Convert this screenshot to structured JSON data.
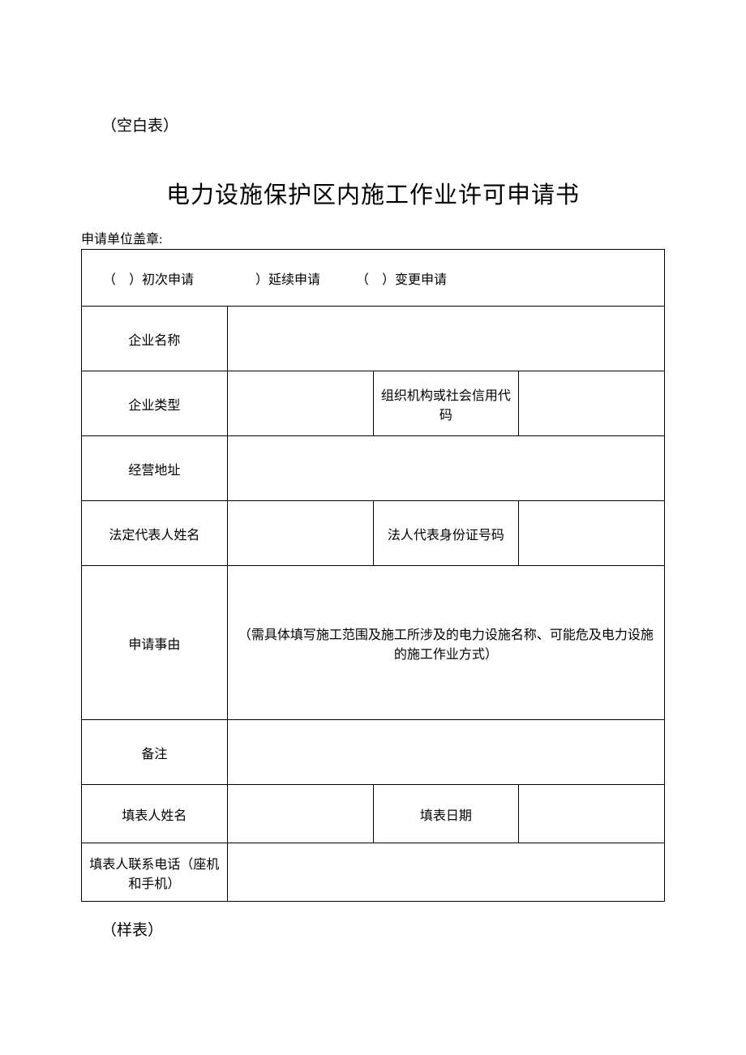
{
  "header": {
    "blank_form_label": "（空白表）",
    "title": "电力设施保护区内施工作业许可申请书",
    "seal_label": "申请单位盖章:",
    "sample_label": "（样表）"
  },
  "checkboxes": {
    "first": "（　）初次申请",
    "renewal": "　　）延续申请",
    "change": "（　）变更申请"
  },
  "labels": {
    "company_name": "企业名称",
    "company_type": "企业类型",
    "org_code": "组织机构或社会信用代码",
    "address": "经营地址",
    "legal_rep_name": "法定代表人姓名",
    "legal_rep_id": "法人代表身份证号码",
    "application_reason": "申请事由",
    "reason_hint": "（需具体填写施工范围及施工所涉及的电力设施名称、可能危及电力设施的施工作业方式）",
    "remarks": "备注",
    "filler_name": "填表人姓名",
    "fill_date": "填表日期",
    "filler_phone": "填表人联系电话（座机和手机）"
  }
}
